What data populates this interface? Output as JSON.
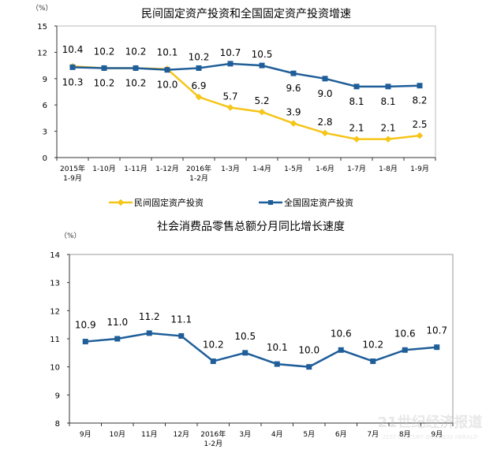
{
  "chart_data": [
    {
      "type": "line",
      "title": "民间固定资产投资和全国固定资产投资增速",
      "ylabel": "（%）",
      "xlabel": "",
      "ylim": [
        0,
        15
      ],
      "yticks": [
        0,
        3,
        6,
        9,
        12,
        15
      ],
      "grid": false,
      "legend_position": "bottom",
      "categories": [
        [
          "2015年",
          "1-9月"
        ],
        [
          "1-10月"
        ],
        [
          "1-11月"
        ],
        [
          "1-12月"
        ],
        [
          "2016年",
          "1-2月"
        ],
        [
          "1-3月"
        ],
        [
          "1-4月"
        ],
        [
          "1-5月"
        ],
        [
          "1-6月"
        ],
        [
          "1-7月"
        ],
        [
          "1-8月"
        ],
        [
          "1-9月"
        ]
      ],
      "series": [
        {
          "name": "民间固定资产投资",
          "color": "#F5C518",
          "marker": "diamond",
          "values": [
            10.4,
            10.2,
            10.2,
            10.1,
            6.9,
            5.7,
            5.2,
            3.9,
            2.8,
            2.1,
            2.1,
            2.5
          ],
          "labels": [
            "10.4",
            "10.2",
            "10.2",
            "10.1",
            "6.9",
            "5.7",
            "5.2",
            "3.9",
            "2.8",
            "2.1",
            "2.1",
            "2.5"
          ]
        },
        {
          "name": "全国固定资产投资",
          "color": "#1F5E99",
          "marker": "square",
          "values": [
            10.3,
            10.2,
            10.2,
            10.0,
            10.2,
            10.7,
            10.5,
            9.6,
            9.0,
            8.1,
            8.1,
            8.2
          ],
          "labels": [
            "10.3",
            "10.2",
            "10.2",
            "10.0",
            "10.2",
            "10.7",
            "10.5",
            "9.6",
            "9.0",
            "8.1",
            "8.1",
            "8.2"
          ]
        }
      ]
    },
    {
      "type": "line",
      "title": "社会消费品零售总额分月同比增长速度",
      "ylabel": "（%）",
      "xlabel": "",
      "ylim": [
        8,
        14
      ],
      "yticks": [
        8,
        9,
        10,
        11,
        12,
        13,
        14
      ],
      "grid": false,
      "categories": [
        [
          "9月"
        ],
        [
          "10月"
        ],
        [
          "11月"
        ],
        [
          "12月"
        ],
        [
          "2016年",
          "1-2月"
        ],
        [
          "3月"
        ],
        [
          "4月"
        ],
        [
          "5月"
        ],
        [
          "6月"
        ],
        [
          "7月"
        ],
        [
          "8月"
        ],
        [
          "9月"
        ]
      ],
      "series": [
        {
          "color": "#1F5E99",
          "marker": "square",
          "values": [
            10.9,
            11.0,
            11.2,
            11.1,
            10.2,
            10.5,
            10.1,
            10.0,
            10.6,
            10.2,
            10.6,
            10.7
          ],
          "labels": [
            "10.9",
            "11.0",
            "11.2",
            "11.1",
            "10.2",
            "10.5",
            "10.1",
            "10.0",
            "10.6",
            "10.2",
            "10.6",
            "10.7"
          ]
        }
      ]
    }
  ],
  "watermark": {
    "cn": "21世纪经济报道",
    "en": "21ST CENTURY BUSINESS HERALD"
  }
}
